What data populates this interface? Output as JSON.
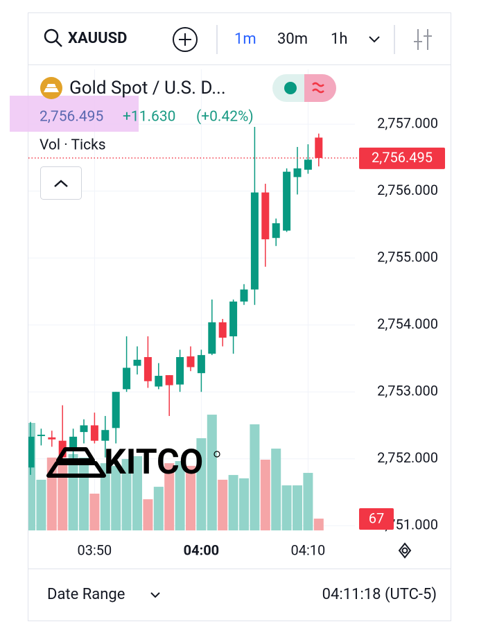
{
  "toolbar": {
    "symbol": "XAUUSD",
    "intervals": [
      "1m",
      "30m",
      "1h"
    ]
  },
  "chart_data": {
    "type": "candlestick",
    "title": "Gold Spot / U.S. D...",
    "change": "+11.630",
    "change_pct": "(+0.42%)",
    "volume_label": "Vol · Ticks",
    "last_price": {
      "value": 2756.495,
      "label": "2,756.495"
    },
    "categories": [
      null,
      null,
      null,
      null,
      null,
      null,
      "03:50",
      null,
      null,
      null,
      null,
      null,
      null,
      null,
      null,
      null,
      "04:00",
      null,
      null,
      null,
      null,
      null,
      null,
      null,
      null,
      null,
      "04:10",
      null
    ],
    "open": [
      2751.87,
      2752.34,
      2752.32,
      2752.27,
      2752.12,
      2752.4,
      2752.5,
      2752.27,
      2752.46,
      2753.04,
      2753.39,
      2753.52,
      2753.08,
      2753.25,
      2753.11,
      2753.53,
      2753.28,
      2753.57,
      2754.04,
      2753.83,
      2754.35,
      2754.53,
      2755.98,
      2755.3,
      2755.41,
      2756.21,
      2756.32,
      2756.8
    ],
    "high": [
      2752.55,
      2752.45,
      2752.42,
      2752.8,
      2752.45,
      2752.59,
      2752.69,
      2752.64,
      2753.0,
      2753.83,
      2753.68,
      2753.83,
      2753.43,
      2753.25,
      2753.63,
      2753.68,
      2753.63,
      2754.38,
      2754.09,
      2754.38,
      2754.61,
      2756.96,
      2756.11,
      2755.59,
      2756.34,
      2756.66,
      2756.7,
      2756.86
    ],
    "low": [
      2751.76,
      2752.2,
      2752.18,
      2751.97,
      2752.0,
      2752.23,
      2752.23,
      2752.02,
      2752.23,
      2753.0,
      2753.26,
      2753.06,
      2753.04,
      2752.64,
      2753.0,
      2753.31,
      2753.0,
      2753.55,
      2753.68,
      2753.57,
      2754.3,
      2754.3,
      2754.87,
      2755.18,
      2755.39,
      2755.95,
      2756.26,
      2756.37
    ],
    "close": [
      2752.33,
      2752.36,
      2752.29,
      2752.02,
      2752.33,
      2752.5,
      2752.27,
      2752.43,
      2753.0,
      2753.36,
      2753.48,
      2753.16,
      2753.24,
      2753.1,
      2753.52,
      2753.37,
      2753.55,
      2754.04,
      2753.81,
      2754.35,
      2754.53,
      2755.98,
      2755.28,
      2755.52,
      2756.29,
      2756.34,
      2756.47,
      2756.495
    ],
    "volume": [
      611,
      288,
      414,
      394,
      434,
      414,
      209,
      382,
      367,
      406,
      422,
      177,
      248,
      382,
      394,
      367,
      524,
      658,
      288,
      315,
      296,
      603,
      402,
      465,
      256,
      256,
      327,
      67
    ],
    "up_color": "#089981",
    "down_color": "#f23645",
    "volume_up_color": "#93d4ca",
    "volume_down_color": "#f5a5a7",
    "ylim": [
      2750.93,
      2757.82
    ],
    "yticks": [
      {
        "value": 2757,
        "label": "2,757.000"
      },
      {
        "value": 2756,
        "label": "2,756.000"
      },
      {
        "value": 2755,
        "label": "2,755.000"
      },
      {
        "value": 2754,
        "label": "2,754.000"
      },
      {
        "value": 2753,
        "label": "2,753.000"
      },
      {
        "value": 2752,
        "label": "2,752.000"
      },
      {
        "value": 2751,
        "label": "2,751.000"
      }
    ],
    "grid": true
  },
  "watermark": "KITCO",
  "footer": {
    "date_range": "Date Range",
    "time": "04:11:18 (UTC-5)"
  }
}
